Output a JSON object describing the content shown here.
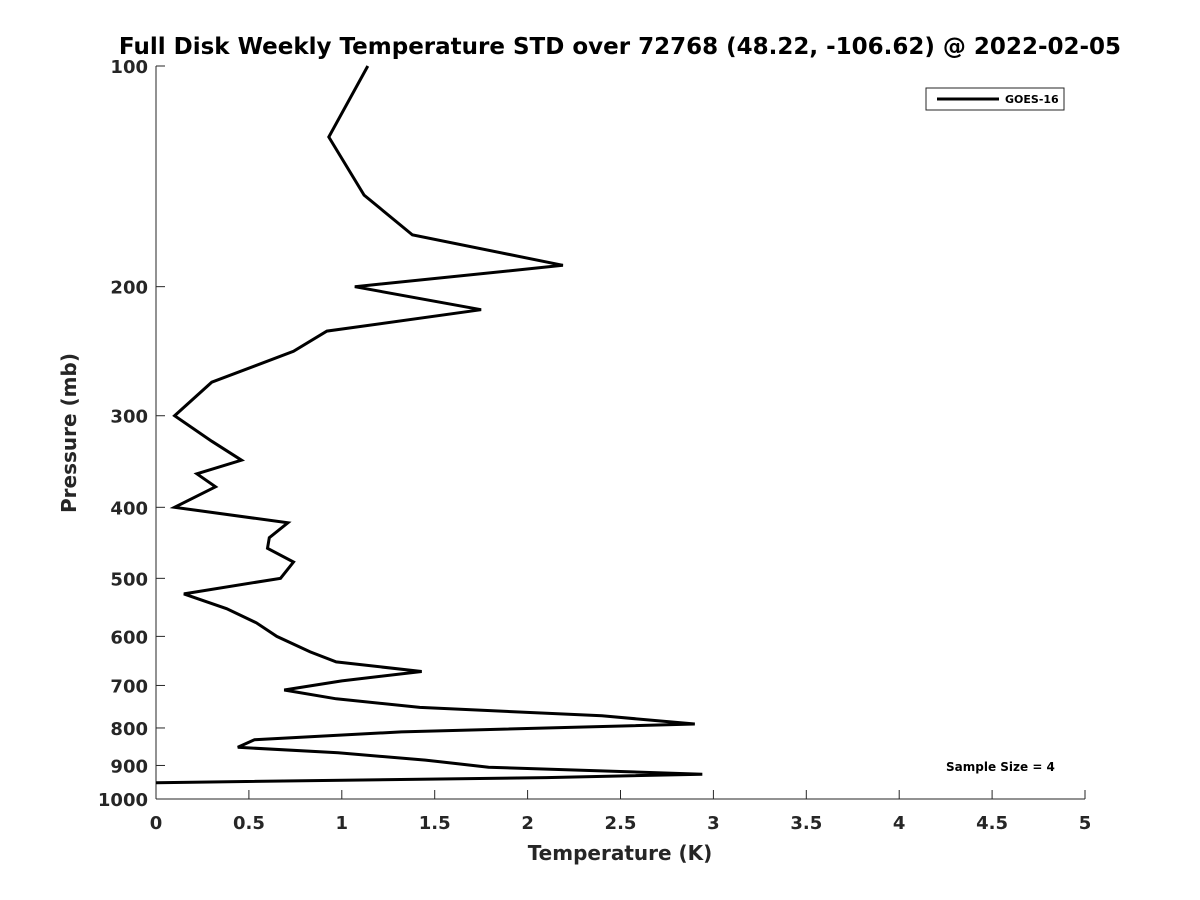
{
  "chart_data": {
    "type": "line",
    "title": "Full Disk Weekly Temperature STD over 72768 (48.22, -106.62) @ 2022-02-05",
    "xlabel": "Temperature (K)",
    "ylabel": "Pressure (mb)",
    "xlim": [
      0,
      5
    ],
    "ylim": [
      100,
      1000
    ],
    "y_scale": "log",
    "y_reversed": true,
    "grid": false,
    "legend_position": "top-right",
    "x_ticks": [
      "0",
      "0.5",
      "1",
      "1.5",
      "2",
      "2.5",
      "3",
      "3.5",
      "4",
      "4.5",
      "5"
    ],
    "y_ticks": [
      "100",
      "200",
      "300",
      "400",
      "500",
      "600",
      "700",
      "800",
      "900",
      "1000"
    ],
    "series": [
      {
        "name": "GOES-16",
        "color": "#000000",
        "points": [
          [
            1.14,
            100
          ],
          [
            0.93,
            125
          ],
          [
            1.12,
            150
          ],
          [
            1.38,
            170
          ],
          [
            2.19,
            187
          ],
          [
            1.07,
            200
          ],
          [
            1.75,
            215
          ],
          [
            0.92,
            230
          ],
          [
            0.74,
            245
          ],
          [
            0.3,
            270
          ],
          [
            0.1,
            300
          ],
          [
            0.3,
            325
          ],
          [
            0.46,
            345
          ],
          [
            0.22,
            360
          ],
          [
            0.32,
            375
          ],
          [
            0.1,
            400
          ],
          [
            0.71,
            420
          ],
          [
            0.61,
            440
          ],
          [
            0.6,
            455
          ],
          [
            0.74,
            475
          ],
          [
            0.67,
            500
          ],
          [
            0.15,
            525
          ],
          [
            0.38,
            550
          ],
          [
            0.54,
            575
          ],
          [
            0.65,
            600
          ],
          [
            0.83,
            630
          ],
          [
            0.97,
            650
          ],
          [
            1.43,
            670
          ],
          [
            1.0,
            690
          ],
          [
            0.69,
            710
          ],
          [
            0.97,
            730
          ],
          [
            1.42,
            750
          ],
          [
            2.4,
            770
          ],
          [
            2.9,
            790
          ],
          [
            1.32,
            810
          ],
          [
            0.53,
            830
          ],
          [
            0.44,
            850
          ],
          [
            0.98,
            865
          ],
          [
            1.45,
            885
          ],
          [
            1.79,
            905
          ],
          [
            2.94,
            925
          ],
          [
            2.1,
            935
          ],
          [
            0.0,
            950
          ]
        ]
      }
    ],
    "annotation": "Sample Size = 4"
  }
}
